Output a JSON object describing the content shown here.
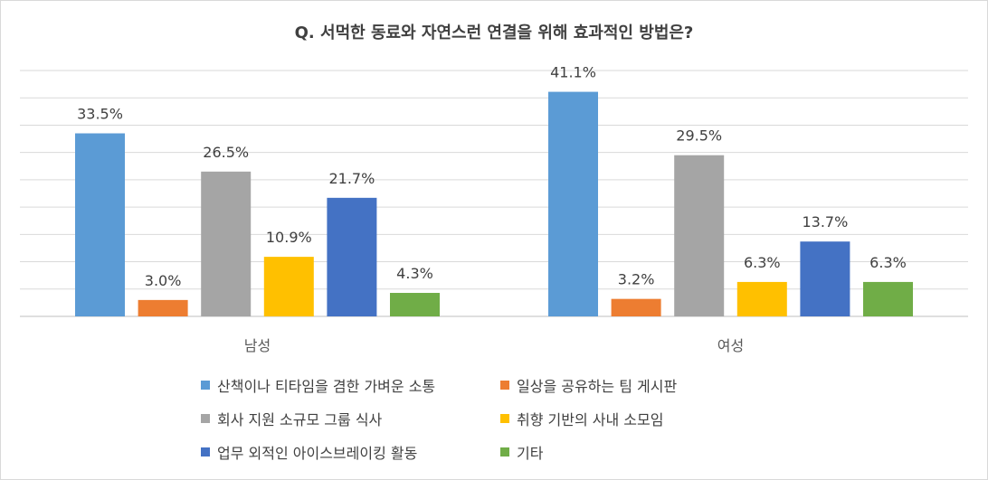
{
  "chart_data": {
    "type": "bar",
    "title": "Q. 서먹한 동료와 자연스런 연결을 위해 효과적인 방법은?",
    "categories": [
      "남성",
      "여성"
    ],
    "ylim": [
      0,
      45
    ],
    "grid": true,
    "legend_position": "bottom",
    "series": [
      {
        "name": "산책이나 티타임을 겸한 가벼운 소통",
        "color": "#5B9BD5",
        "values": [
          33.5,
          41.1
        ],
        "labels": [
          "33.5%",
          "41.1%"
        ]
      },
      {
        "name": "일상을 공유하는 팀 게시판",
        "color": "#ED7D31",
        "values": [
          3.0,
          3.2
        ],
        "labels": [
          "3.0%",
          "3.2%"
        ]
      },
      {
        "name": "회사 지원 소규모 그룹 식사",
        "color": "#A5A5A5",
        "values": [
          26.5,
          29.5
        ],
        "labels": [
          "26.5%",
          "29.5%"
        ]
      },
      {
        "name": "취향 기반의 사내 소모임",
        "color": "#FFC000",
        "values": [
          10.9,
          6.3
        ],
        "labels": [
          "10.9%",
          "6.3%"
        ]
      },
      {
        "name": "업무 외적인 아이스브레이킹 활동",
        "color": "#4472C4",
        "values": [
          21.7,
          13.7
        ],
        "labels": [
          "21.7%",
          "13.7%"
        ]
      },
      {
        "name": "기타",
        "color": "#70AD47",
        "values": [
          4.3,
          6.3
        ],
        "labels": [
          "4.3%",
          "6.3%"
        ]
      }
    ]
  }
}
